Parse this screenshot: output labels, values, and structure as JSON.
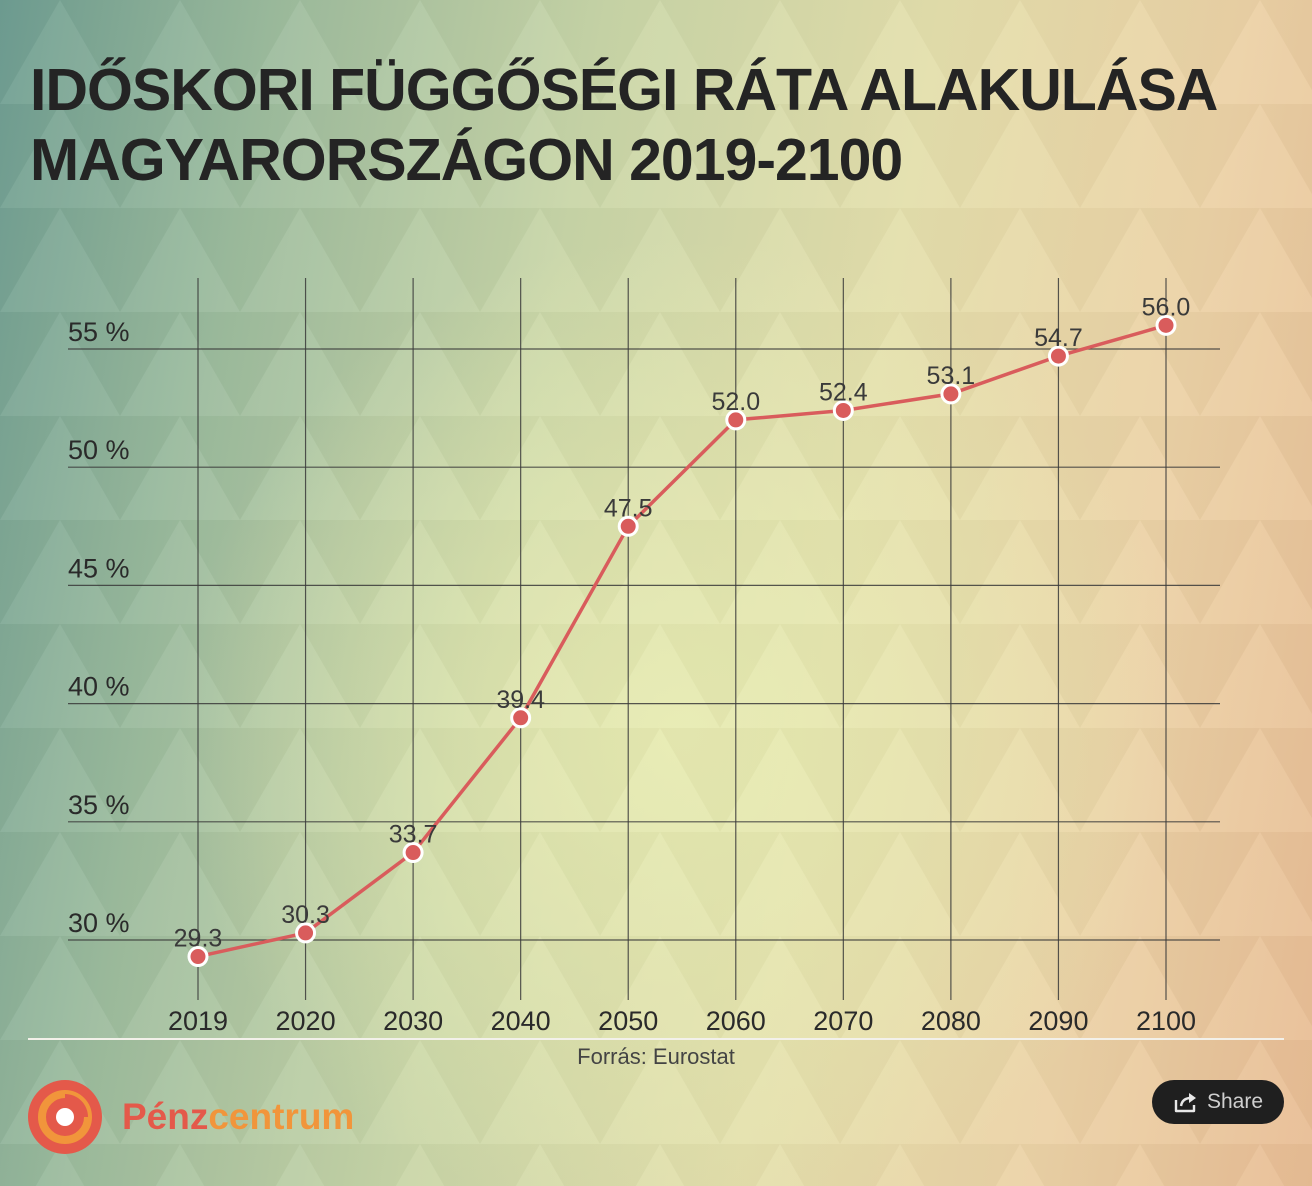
{
  "title_lines": [
    "IDŐSKORI FÜGGŐSÉGI RÁTA ALAKULÁSA",
    "MAGYARORSZÁGON 2019-2100"
  ],
  "source": "Forrás: Eurostat",
  "logo": {
    "part1": "Pénz",
    "part2": "centrum"
  },
  "share_label": "Share",
  "icons": {
    "logo": "penzcentrum-logo-icon",
    "share": "share-icon"
  },
  "colors": {
    "line": "#d95c5c",
    "point_stroke": "#ffffff",
    "grid": "#3a3a3a",
    "title": "#242424",
    "logo_red": "#e4594a",
    "logo_orange": "#f1953b"
  },
  "chart_data": {
    "type": "line",
    "title": "IDŐSKORI FÜGGŐSÉGI RÁTA ALAKULÁSA MAGYARORSZÁGON 2019-2100",
    "categories": [
      "2019",
      "2020",
      "2030",
      "2040",
      "2050",
      "2060",
      "2070",
      "2080",
      "2090",
      "2100"
    ],
    "series": [
      {
        "values": [
          29.3,
          30.3,
          33.7,
          39.4,
          47.5,
          52.0,
          52.4,
          53.1,
          54.7,
          56.0
        ]
      }
    ],
    "data_labels": [
      "29.3",
      "30.3",
      "33.7",
      "39.4",
      "47.5",
      "52.0",
      "52.4",
      "53.1",
      "54.7",
      "56.0"
    ],
    "y_ticks": [
      30,
      35,
      40,
      45,
      50,
      55
    ],
    "y_tick_labels": [
      "30 %",
      "35 %",
      "40 %",
      "45 %",
      "50 %",
      "55 %"
    ],
    "ylim": [
      27.4,
      58
    ],
    "xlabel": "",
    "ylabel": "",
    "grid": true,
    "legend": "none"
  }
}
